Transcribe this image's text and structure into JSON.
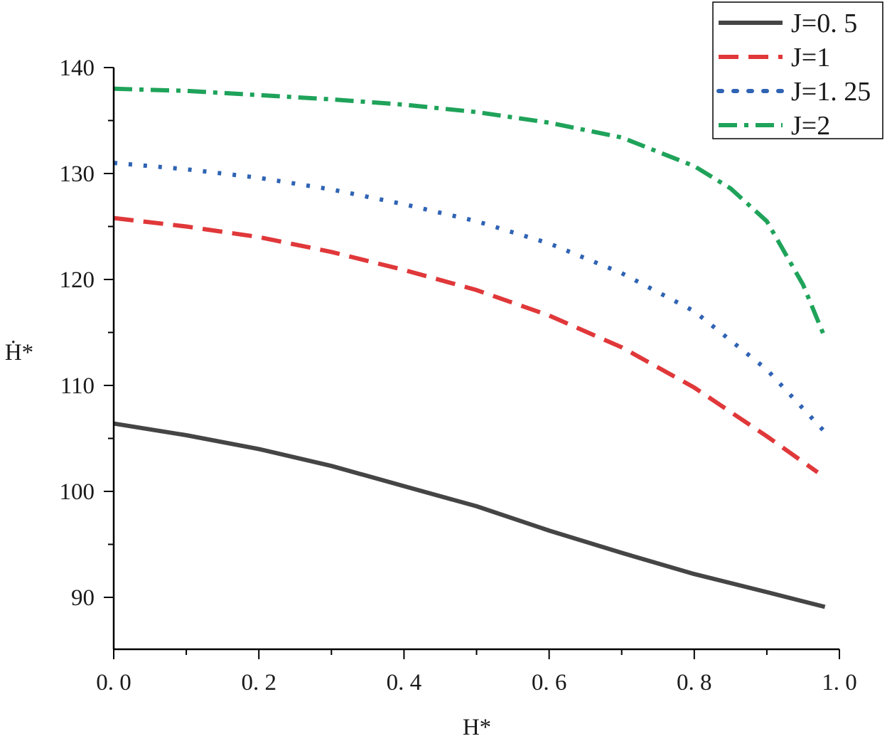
{
  "chart_data": {
    "type": "line",
    "xlabel": "H*",
    "ylabel": "Ḣ*",
    "xlim": [
      0,
      1
    ],
    "ylim": [
      85,
      140
    ],
    "xticks": [
      0.0,
      0.2,
      0.4,
      0.6,
      0.8,
      1.0
    ],
    "xtick_labels": [
      "0. 0",
      "0. 2",
      "0. 4",
      "0. 6",
      "0. 8",
      "1. 0"
    ],
    "yticks": [
      90,
      100,
      110,
      120,
      130,
      140
    ],
    "ytick_labels": [
      "90",
      "100",
      "110",
      "120",
      "130",
      "140"
    ],
    "legend_position": "top-right",
    "grid": false,
    "series": [
      {
        "name": "J=0. 5",
        "color": "#454545",
        "dash": "solid",
        "x": [
          0,
          0.1,
          0.2,
          0.3,
          0.4,
          0.5,
          0.6,
          0.7,
          0.8,
          0.9,
          0.98
        ],
        "y": [
          106.4,
          105.3,
          104.0,
          102.4,
          100.5,
          98.6,
          96.3,
          94.2,
          92.2,
          90.5,
          89.1
        ]
      },
      {
        "name": "J=1",
        "color": "#e0383a",
        "dash": "dashed",
        "x": [
          0,
          0.1,
          0.2,
          0.3,
          0.4,
          0.5,
          0.6,
          0.7,
          0.8,
          0.9,
          0.97
        ],
        "y": [
          125.8,
          125.0,
          124.0,
          122.6,
          120.9,
          119.0,
          116.6,
          113.6,
          109.8,
          105.2,
          101.8
        ]
      },
      {
        "name": "J=1. 25",
        "color": "#2f63b4",
        "dash": "dotted",
        "x": [
          0,
          0.1,
          0.2,
          0.3,
          0.4,
          0.5,
          0.6,
          0.7,
          0.8,
          0.9,
          0.98
        ],
        "y": [
          131.0,
          130.4,
          129.6,
          128.5,
          127.1,
          125.5,
          123.4,
          120.6,
          117.0,
          111.5,
          105.6
        ]
      },
      {
        "name": "J=2",
        "color": "#1fa35a",
        "dash": "dashdot",
        "x": [
          0,
          0.1,
          0.2,
          0.3,
          0.4,
          0.5,
          0.6,
          0.7,
          0.8,
          0.85,
          0.9,
          0.95,
          0.98
        ],
        "y": [
          138.0,
          137.8,
          137.4,
          137.0,
          136.5,
          135.8,
          134.8,
          133.4,
          130.7,
          128.6,
          125.5,
          119.5,
          114.5
        ]
      }
    ]
  }
}
